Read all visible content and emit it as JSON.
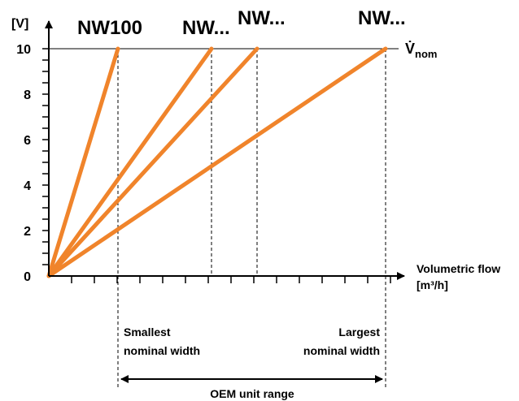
{
  "colors": {
    "curve": "#F0842B",
    "axis": "#000000"
  },
  "y_axis": {
    "unit": "[V]",
    "ticks": [
      "0",
      "2",
      "4",
      "6",
      "8",
      "10"
    ]
  },
  "x_axis": {
    "label_line1": "Volumetric flow",
    "label_line2": "[m³/h]"
  },
  "nominal_flow_label": {
    "base": "V̇",
    "subscript": "nom"
  },
  "curves": [
    {
      "label": "NW100"
    },
    {
      "label": "NW..."
    },
    {
      "label": "NW..."
    },
    {
      "label": "NW..."
    }
  ],
  "annotations": {
    "smallest_line1": "Smallest",
    "smallest_line2": "nominal width",
    "largest_line1": "Largest",
    "largest_line2": "nominal width",
    "range_label": "OEM unit range"
  }
}
